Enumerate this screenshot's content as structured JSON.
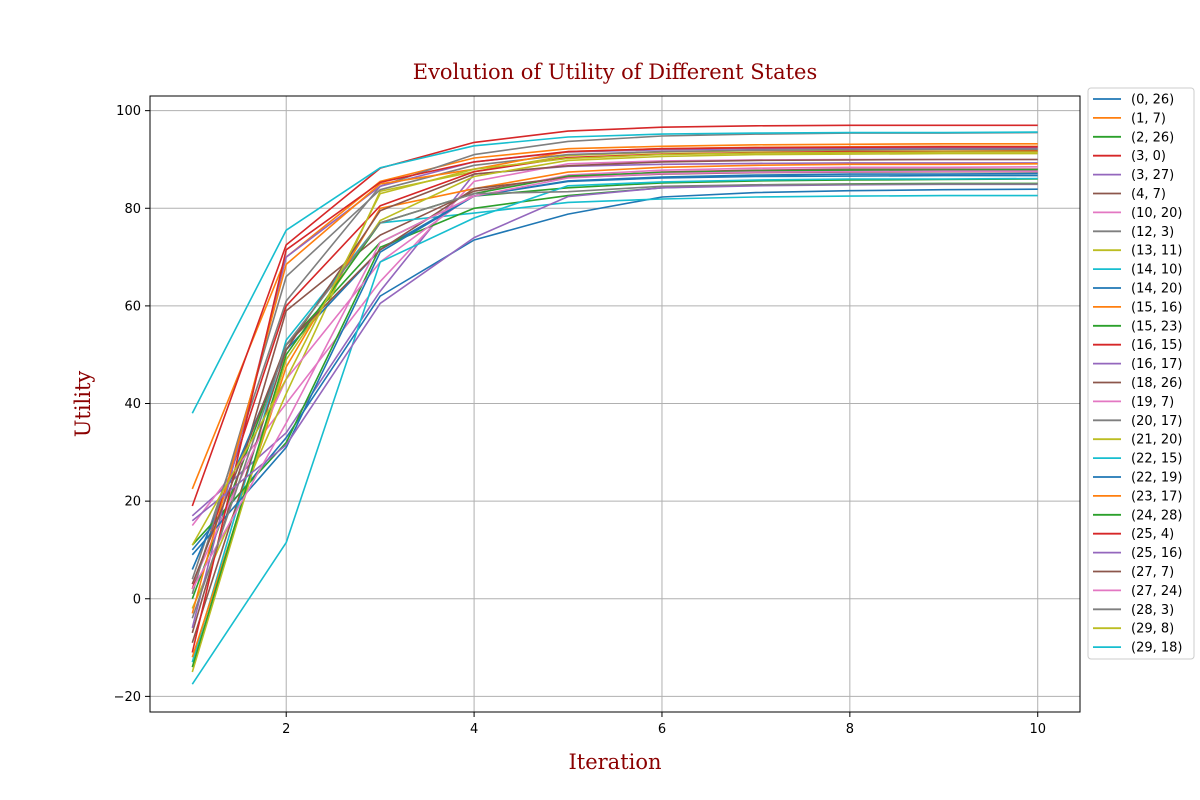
{
  "chart_data": {
    "type": "line",
    "title": "Evolution of Utility of Different States",
    "xlabel": "Iteration",
    "ylabel": "Utility",
    "xlim": [
      0.55,
      10.45
    ],
    "ylim": [
      -23.2,
      103
    ],
    "x_ticks": [
      2,
      4,
      6,
      8,
      10
    ],
    "y_ticks": [
      -20,
      0,
      20,
      40,
      60,
      80,
      100
    ],
    "x_tick_labels": [
      "2",
      "4",
      "6",
      "8",
      "10"
    ],
    "y_tick_labels": [
      "−20",
      "0",
      "20",
      "40",
      "60",
      "80",
      "100"
    ],
    "grid": true,
    "legend_position": "outside-right",
    "x": [
      1,
      2,
      3,
      4,
      5,
      6,
      7,
      8,
      9,
      10
    ],
    "series": [
      {
        "name": "(0, 26)",
        "color": "#1f77b4",
        "values": [
          10,
          33,
          62,
          73.5,
          78.8,
          82.3,
          83.2,
          83.6,
          83.8,
          83.9
        ]
      },
      {
        "name": "(1, 7)",
        "color": "#ff7f0e",
        "values": [
          22.5,
          70,
          85.5,
          90.3,
          92.2,
          92.7,
          93,
          93.1,
          93.2,
          93.2
        ]
      },
      {
        "name": "(2, 26)",
        "color": "#2ca02c",
        "values": [
          0,
          52,
          73,
          82.5,
          84.2,
          85.2,
          85.6,
          85.8,
          85.9,
          86
        ]
      },
      {
        "name": "(3, 0)",
        "color": "#d62728",
        "values": [
          19,
          72.5,
          88.2,
          93.5,
          95.8,
          96.6,
          96.9,
          97,
          97,
          97
        ]
      },
      {
        "name": "(3, 27)",
        "color": "#9467bd",
        "values": [
          17,
          34,
          63,
          87,
          88.6,
          89,
          89.2,
          89.3,
          89.3,
          89.3
        ]
      },
      {
        "name": "(4, 7)",
        "color": "#8c564b",
        "values": [
          -7,
          59,
          74.5,
          83.5,
          86.4,
          87.4,
          87.8,
          88,
          88,
          88
        ]
      },
      {
        "name": "(10, 20)",
        "color": "#e377c2",
        "values": [
          15,
          40,
          65,
          85.5,
          89.1,
          89.7,
          89.9,
          90,
          90,
          90
        ]
      },
      {
        "name": "(12, 3)",
        "color": "#7f7f7f",
        "values": [
          4,
          61,
          84.5,
          91,
          93.7,
          94.8,
          95.2,
          95.4,
          95.4,
          95.5
        ]
      },
      {
        "name": "(13, 11)",
        "color": "#bcbd22",
        "values": [
          -2,
          42,
          83.5,
          87.5,
          90.8,
          91.5,
          91.8,
          91.9,
          92,
          92
        ]
      },
      {
        "name": "(14, 10)",
        "color": "#17becf",
        "values": [
          -13,
          53,
          77,
          79,
          81.2,
          81.9,
          82.3,
          82.5,
          82.6,
          82.6
        ]
      },
      {
        "name": "(14, 20)",
        "color": "#1f77b4",
        "values": [
          6,
          51,
          71.5,
          82.5,
          85.6,
          86.4,
          86.8,
          87,
          87,
          87.1
        ]
      },
      {
        "name": "(15, 16)",
        "color": "#ff7f0e",
        "values": [
          -12,
          47.5,
          80,
          84,
          87.4,
          88.4,
          88.8,
          89,
          89,
          89.1
        ]
      },
      {
        "name": "(15, 23)",
        "color": "#2ca02c",
        "values": [
          11,
          32,
          72,
          80,
          82.6,
          84.2,
          84.8,
          85,
          85.1,
          85.1
        ]
      },
      {
        "name": "(16, 15)",
        "color": "#d62728",
        "values": [
          2,
          60,
          80.5,
          87.5,
          90.4,
          91.1,
          91.4,
          91.6,
          91.6,
          91.7
        ]
      },
      {
        "name": "(16, 17)",
        "color": "#9467bd",
        "values": [
          -6,
          70,
          84.5,
          89.5,
          91.5,
          92,
          92.2,
          92.3,
          92.3,
          92.4
        ]
      },
      {
        "name": "(18, 26)",
        "color": "#8c564b",
        "values": [
          -9,
          51,
          79.5,
          87,
          88.7,
          89.5,
          89.8,
          89.9,
          90,
          90
        ]
      },
      {
        "name": "(19, 7)",
        "color": "#e377c2",
        "values": [
          3,
          45,
          69,
          83,
          86.8,
          87.8,
          88.2,
          88.4,
          88.4,
          88.5
        ]
      },
      {
        "name": "(20, 17)",
        "color": "#7f7f7f",
        "values": [
          1,
          66,
          83.8,
          88.8,
          91,
          91.6,
          91.9,
          92,
          92.1,
          92.1
        ]
      },
      {
        "name": "(21, 20)",
        "color": "#bcbd22",
        "values": [
          -15,
          49,
          77.5,
          86.5,
          89.8,
          90.6,
          91,
          91.1,
          91.2,
          91.2
        ]
      },
      {
        "name": "(22, 15)",
        "color": "#17becf",
        "values": [
          -17.5,
          11.5,
          69,
          78,
          84.6,
          85.4,
          85.8,
          86,
          86,
          86.1
        ]
      },
      {
        "name": "(22, 19)",
        "color": "#1f77b4",
        "values": [
          9,
          31,
          71,
          82.5,
          85.5,
          86.2,
          86.5,
          86.6,
          86.7,
          86.7
        ]
      },
      {
        "name": "(23, 17)",
        "color": "#ff7f0e",
        "values": [
          -3,
          68.5,
          85,
          88,
          91.6,
          92.2,
          92.5,
          92.6,
          92.7,
          92.7
        ]
      },
      {
        "name": "(24, 28)",
        "color": "#2ca02c",
        "values": [
          -14,
          50,
          77,
          83,
          86.6,
          87.3,
          87.6,
          87.8,
          87.8,
          87.9
        ]
      },
      {
        "name": "(25, 4)",
        "color": "#d62728",
        "values": [
          -11,
          71.5,
          85.3,
          89.5,
          91.6,
          92.2,
          92.4,
          92.5,
          92.6,
          92.6
        ]
      },
      {
        "name": "(25, 16)",
        "color": "#9467bd",
        "values": [
          16,
          31.5,
          60.5,
          74,
          82.4,
          84.2,
          84.6,
          84.8,
          84.9,
          84.9
        ]
      },
      {
        "name": "(27, 7)",
        "color": "#8c564b",
        "values": [
          3,
          52,
          71.5,
          84,
          86.3,
          87,
          87.3,
          87.4,
          87.5,
          87.5
        ]
      },
      {
        "name": "(27, 24)",
        "color": "#e377c2",
        "values": [
          2,
          36,
          73,
          82.5,
          86.2,
          87.1,
          87.4,
          87.5,
          87.6,
          87.6
        ]
      },
      {
        "name": "(28, 3)",
        "color": "#7f7f7f",
        "values": [
          -4,
          52,
          77,
          83,
          83.4,
          84.5,
          84.8,
          84.9,
          85,
          85
        ]
      },
      {
        "name": "(29, 8)",
        "color": "#bcbd22",
        "values": [
          11,
          45,
          83,
          88,
          90.2,
          91,
          91.3,
          91.4,
          91.5,
          91.5
        ]
      },
      {
        "name": "(29, 18)",
        "color": "#17becf",
        "values": [
          38,
          75.5,
          88.3,
          92.8,
          94.6,
          95.2,
          95.4,
          95.5,
          95.5,
          95.6
        ]
      }
    ]
  }
}
